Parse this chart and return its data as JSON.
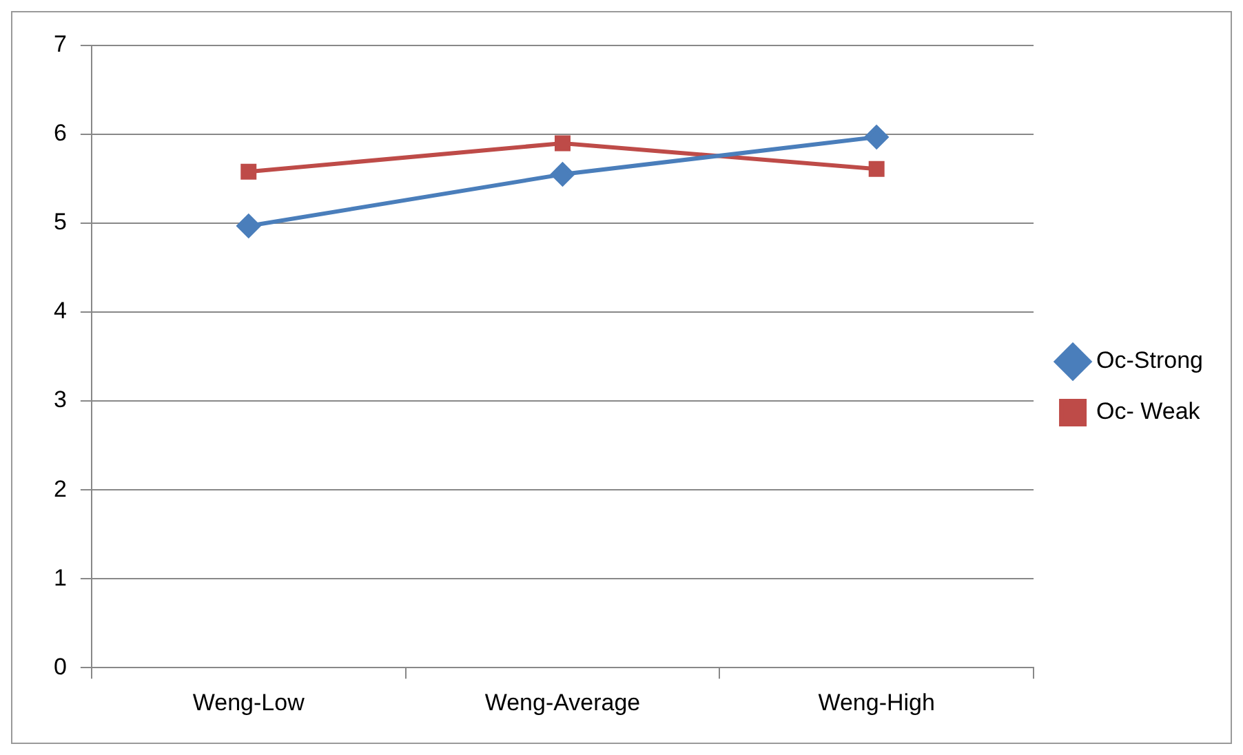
{
  "chart_data": {
    "type": "line",
    "categories": [
      "Weng-Low",
      "Weng-Average",
      "Weng-High"
    ],
    "series": [
      {
        "name": "Oc-Strong",
        "color": "#4a7ebb",
        "marker": "diamond",
        "values": [
          4.97,
          5.55,
          5.97
        ]
      },
      {
        "name": "Oc- Weak",
        "color": "#be4b48",
        "marker": "square",
        "values": [
          5.58,
          5.9,
          5.61
        ]
      }
    ],
    "ylim": [
      0,
      7
    ],
    "yticks": [
      0,
      1,
      2,
      3,
      4,
      5,
      6,
      7
    ],
    "grid": "y",
    "legend": "right"
  }
}
